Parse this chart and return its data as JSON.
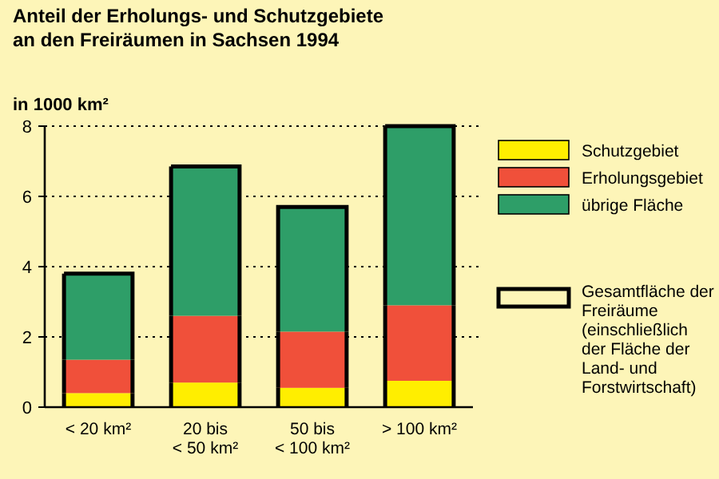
{
  "chart_data": {
    "type": "bar",
    "title": "Anteil der Erholungs- und Schutzgebiete\nan den Freiräumen in Sachsen 1994",
    "ylabel": "in 1000 km²",
    "categories": [
      "< 20 km²",
      "20 bis\n< 50 km²",
      "50 bis\n< 100 km²",
      "> 100 km²"
    ],
    "stacked": true,
    "series": [
      {
        "name": "Schutzgebiet",
        "color": "#ffee00",
        "values": [
          0.4,
          0.7,
          0.55,
          0.75
        ]
      },
      {
        "name": "Erholungsgebiet",
        "color": "#f0503a",
        "values": [
          0.95,
          1.9,
          1.6,
          2.15
        ]
      },
      {
        "name": "übrige Fläche",
        "color": "#2e9e68",
        "values": [
          2.45,
          4.25,
          3.55,
          5.1
        ]
      }
    ],
    "annotations": [
      "Gesamtfläche der\nFreiräume\n(einschließlich\nder Fläche der\nLand- und\nForstwirtschaft)"
    ],
    "ylim": [
      0,
      8
    ],
    "yticks": [
      0,
      2,
      4,
      6,
      8
    ],
    "grid": "y",
    "legend": "right"
  }
}
